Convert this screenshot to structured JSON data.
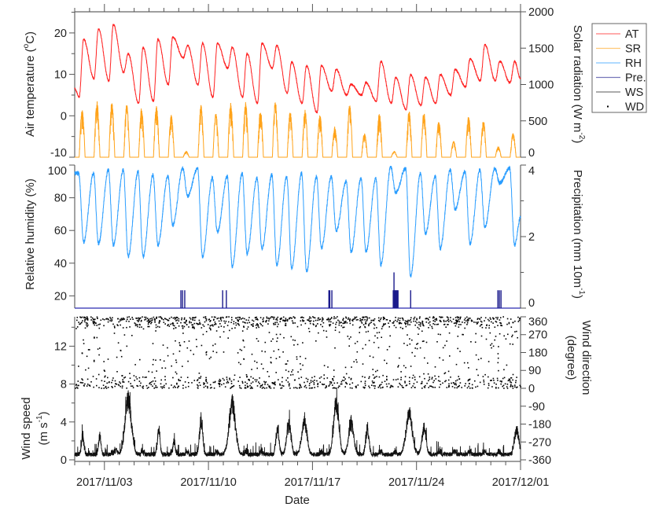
{
  "chart_data": {
    "type": "line",
    "x_label": "Date",
    "x_range_days": [
      0,
      30
    ],
    "x_start": "2017/11/01",
    "date_ticks": [
      {
        "day": 2,
        "label": "2017/11/03"
      },
      {
        "day": 9,
        "label": "2017/11/10"
      },
      {
        "day": 16,
        "label": "2017/11/17"
      },
      {
        "day": 23,
        "label": "2017/11/24"
      },
      {
        "day": 30,
        "label": "2017/12/01"
      }
    ],
    "legend": {
      "position": "right-outside-top",
      "entries": [
        {
          "label": "AT",
          "color": "#ff2020",
          "kind": "line"
        },
        {
          "label": "SR",
          "color": "#ffa31a",
          "kind": "line"
        },
        {
          "label": "RH",
          "color": "#2a9dff",
          "kind": "line"
        },
        {
          "label": "Pre.",
          "color": "#1a1a8c",
          "kind": "line"
        },
        {
          "label": "WS",
          "color": "#222222",
          "kind": "line"
        },
        {
          "label": "WD",
          "color": "#000000",
          "kind": "dot"
        }
      ]
    },
    "panels": {
      "top": {
        "left_axis": {
          "label": "Air temperature (",
          "sup": "o",
          "close": "C)",
          "range": [
            -10,
            25
          ],
          "ticks": [
            "-10",
            "0",
            "10",
            "20"
          ]
        },
        "right_axis": {
          "label": "Solar radiation (W m",
          "sup": "-2",
          "close": ")",
          "range": [
            0,
            2000
          ],
          "ticks": [
            "0",
            "500",
            "1000",
            "1500",
            "2000"
          ]
        }
      },
      "middle": {
        "left_axis": {
          "label": "Relative humidity (%)",
          "range": [
            12,
            100
          ],
          "ticks": [
            "20",
            "40",
            "60",
            "80",
            "100"
          ]
        },
        "right_axis": {
          "label": "Precipitation (mm 10m",
          "sup": "-1",
          "close": ")",
          "range": [
            0,
            4
          ],
          "ticks": [
            "0",
            "2",
            "4"
          ]
        }
      },
      "bottom": {
        "left_axis": {
          "label": "Wind speed",
          "label2": "(m s",
          "sup": "-1",
          "close": ")",
          "range": [
            0,
            15
          ],
          "ticks": [
            "0",
            "4",
            "8",
            "12"
          ]
        },
        "right_axis": {
          "label": "Wind direction",
          "label2": "(degree)",
          "range": [
            -360,
            360
          ],
          "ticks": [
            "-360",
            "-270",
            "-180",
            "-90",
            "0",
            "90",
            "180",
            "270",
            "360"
          ]
        }
      }
    },
    "series": {
      "AT_daily_min": [
        4.5,
        9,
        8.5,
        10.5,
        3,
        3.5,
        7.5,
        14,
        7.5,
        4.5,
        11.5,
        4.5,
        3,
        11.5,
        5.5,
        3,
        0.7,
        6,
        5,
        5,
        3.5,
        3,
        1.5,
        2.5,
        3,
        5,
        7,
        8.5,
        8.5,
        8
      ],
      "AT_daily_max": [
        18.5,
        21,
        22,
        15,
        16.5,
        18.5,
        19,
        17,
        17.5,
        17.5,
        16.5,
        15,
        17.5,
        17,
        13,
        12.1,
        12.1,
        11.2,
        7.6,
        8,
        13.1,
        9.3,
        9.9,
        9.3,
        9.9,
        11.2,
        13.7,
        17.1,
        13.1,
        13.1
      ],
      "AT_start": 6.5,
      "AT_end": 9,
      "SR_daily_peak": [
        660,
        785,
        770,
        730,
        680,
        715,
        590,
        80,
        720,
        605,
        755,
        770,
        660,
        770,
        640,
        660,
        590,
        425,
        730,
        335,
        605,
        80,
        640,
        625,
        505,
        225,
        570,
        515,
        145,
        335
      ],
      "RH_daily_min": [
        53,
        52,
        51,
        44,
        44,
        51,
        63,
        81,
        44,
        59,
        38,
        46,
        49,
        39,
        37,
        35,
        49,
        60,
        47,
        47,
        39,
        83,
        32,
        58,
        49,
        73,
        52,
        62,
        89,
        51
      ],
      "RH_daily_max": [
        95,
        95,
        97,
        97,
        96,
        94,
        93,
        98,
        98,
        92,
        93,
        95,
        92,
        94,
        93,
        95,
        93,
        93,
        90,
        92,
        92,
        99,
        98,
        95,
        93,
        97,
        96,
        97,
        98,
        98
      ],
      "RH_start": 95,
      "RH_end": 68,
      "precipitation_events": [
        [
          7.14,
          0.5
        ],
        [
          7.25,
          0.5
        ],
        [
          7.4,
          0.5
        ],
        [
          9.95,
          0.5
        ],
        [
          10.2,
          0.5
        ],
        [
          17.1,
          0.5
        ],
        [
          17.16,
          0.5
        ],
        [
          17.3,
          0.5
        ],
        [
          21.43,
          0.5
        ],
        [
          21.48,
          1.0
        ],
        [
          21.53,
          0.5
        ],
        [
          21.58,
          0.5
        ],
        [
          21.64,
          0.5
        ],
        [
          21.7,
          0.5
        ],
        [
          21.75,
          0.5
        ],
        [
          22.6,
          0.5
        ],
        [
          28.47,
          0.5
        ],
        [
          28.57,
          0.5
        ],
        [
          28.68,
          0.5
        ]
      ],
      "WS_peaks": [
        [
          0.53,
          2.5,
          0.12
        ],
        [
          1.7,
          2.9,
          0.1
        ],
        [
          2.8,
          1.3,
          0.1
        ],
        [
          3.6,
          7.5,
          0.3
        ],
        [
          5.66,
          3.5,
          0.12
        ],
        [
          6.7,
          2.2,
          0.1
        ],
        [
          8.5,
          4.6,
          0.15
        ],
        [
          10.6,
          6.9,
          0.3
        ],
        [
          13.65,
          3.5,
          0.15
        ],
        [
          14.4,
          4.2,
          0.2
        ],
        [
          15.45,
          4.6,
          0.25
        ],
        [
          17.6,
          6.8,
          0.25
        ],
        [
          18.6,
          4.3,
          0.25
        ],
        [
          19.7,
          3.6,
          0.15
        ],
        [
          22.5,
          5.5,
          0.3
        ],
        [
          23.5,
          3.6,
          0.2
        ],
        [
          29.75,
          3.6,
          0.2
        ]
      ],
      "WD_preferred_sectors_deg": [
        [
          300,
          360
        ],
        [
          0,
          60
        ]
      ]
    }
  }
}
